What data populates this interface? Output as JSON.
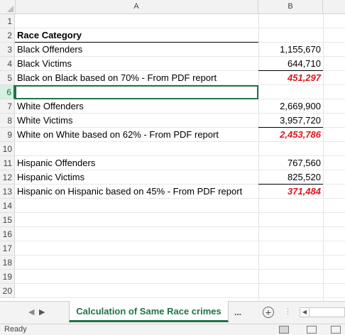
{
  "columns": [
    "A",
    "B"
  ],
  "rows": [
    {
      "num": "1",
      "a": "",
      "b": ""
    },
    {
      "num": "2",
      "a": "Race Category",
      "b": "",
      "bold": true
    },
    {
      "num": "3",
      "a": "Black Offenders",
      "b": "1,155,670"
    },
    {
      "num": "4",
      "a": "Black Victims",
      "b": "644,710"
    },
    {
      "num": "5",
      "a": "Black on Black based on 70% - From PDF report",
      "b": "451,297",
      "total": true
    },
    {
      "num": "6",
      "a": "",
      "b": ""
    },
    {
      "num": "7",
      "a": "White Offenders",
      "b": "2,669,900"
    },
    {
      "num": "8",
      "a": "White Victims",
      "b": "3,957,720"
    },
    {
      "num": "9",
      "a": "White on White based on 62% - From PDF report",
      "b": "2,453,786",
      "total": true
    },
    {
      "num": "10",
      "a": "",
      "b": ""
    },
    {
      "num": "11",
      "a": "Hispanic Offenders",
      "b": "767,560"
    },
    {
      "num": "12",
      "a": "Hispanic Victims",
      "b": "825,520"
    },
    {
      "num": "13",
      "a": "Hispanic on Hispanic based on 45% - From PDF report",
      "b": "371,484",
      "total": true
    },
    {
      "num": "14",
      "a": "",
      "b": ""
    },
    {
      "num": "15",
      "a": "",
      "b": ""
    },
    {
      "num": "16",
      "a": "",
      "b": ""
    },
    {
      "num": "17",
      "a": "",
      "b": ""
    },
    {
      "num": "18",
      "a": "",
      "b": ""
    },
    {
      "num": "19",
      "a": "",
      "b": ""
    },
    {
      "num": "20",
      "a": "",
      "b": ""
    }
  ],
  "selected_row": "6",
  "sheet_tab": {
    "label": "Calculation of Same Race crimes"
  },
  "tab_overflow": "...",
  "add_sheet_label": "+",
  "status": {
    "text": "Ready"
  },
  "colors": {
    "accent": "#217346",
    "total_text": "#e0141e"
  },
  "icons": {
    "nav_prev": "chevron-left-icon",
    "nav_next": "chevron-right-icon",
    "add_sheet": "plus-circle-icon",
    "normal_view": "grid-view-icon",
    "page_layout": "page-layout-icon",
    "page_break": "page-break-icon"
  }
}
